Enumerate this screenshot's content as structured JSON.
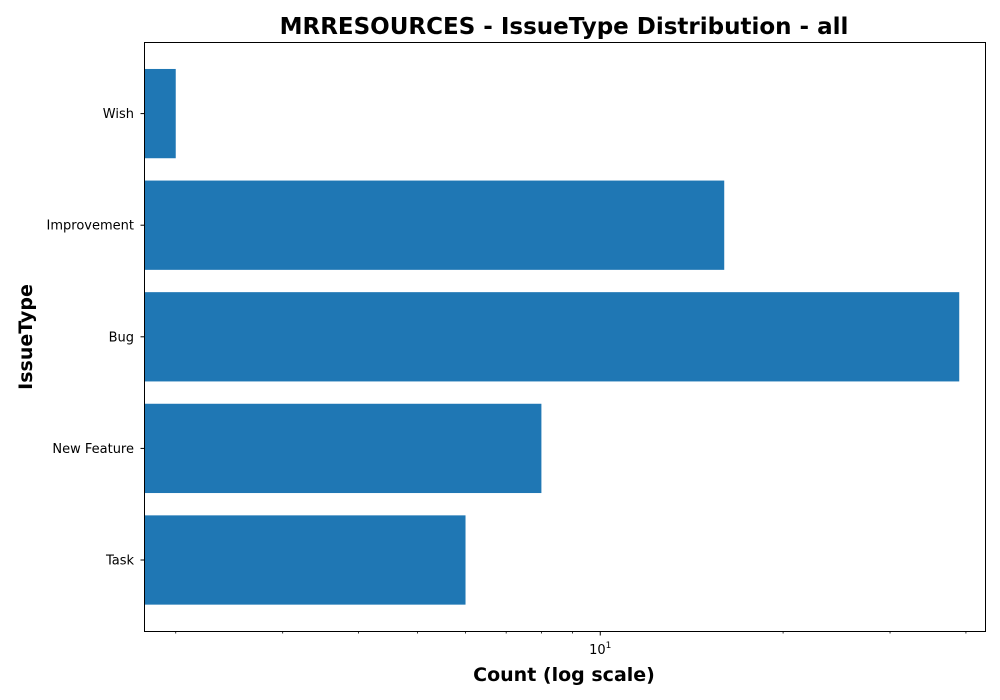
{
  "chart_data": {
    "type": "bar",
    "orientation": "horizontal",
    "title": "MRRESOURCES - IssueType Distribution - all",
    "xlabel": "Count (log scale)",
    "ylabel": "IssueType",
    "x_scale": "log",
    "xlim": [
      1.78,
      43
    ],
    "grid": false,
    "categories": [
      "Task",
      "New Feature",
      "Bug",
      "Improvement",
      "Wish"
    ],
    "values": [
      6,
      8,
      39,
      16,
      2
    ],
    "bar_color": "#1f77b4",
    "x_ticks": [
      {
        "value": 10,
        "base": "10",
        "exponent": "1"
      }
    ],
    "x_minor_ticks": [
      2,
      3,
      4,
      5,
      6,
      7,
      8,
      9,
      20,
      30,
      40
    ]
  }
}
